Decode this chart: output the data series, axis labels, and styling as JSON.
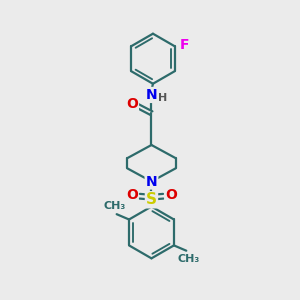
{
  "bg_color": "#ebebeb",
  "bond_color": "#2d6b6b",
  "bond_width": 1.6,
  "atom_colors": {
    "O": "#dd0000",
    "N": "#0000ee",
    "S": "#cccc00",
    "F": "#ee00ee",
    "H": "#555555",
    "C": "#2d6b6b"
  },
  "font_size": 9,
  "fig_size": [
    3.0,
    3.0
  ],
  "dpi": 100
}
